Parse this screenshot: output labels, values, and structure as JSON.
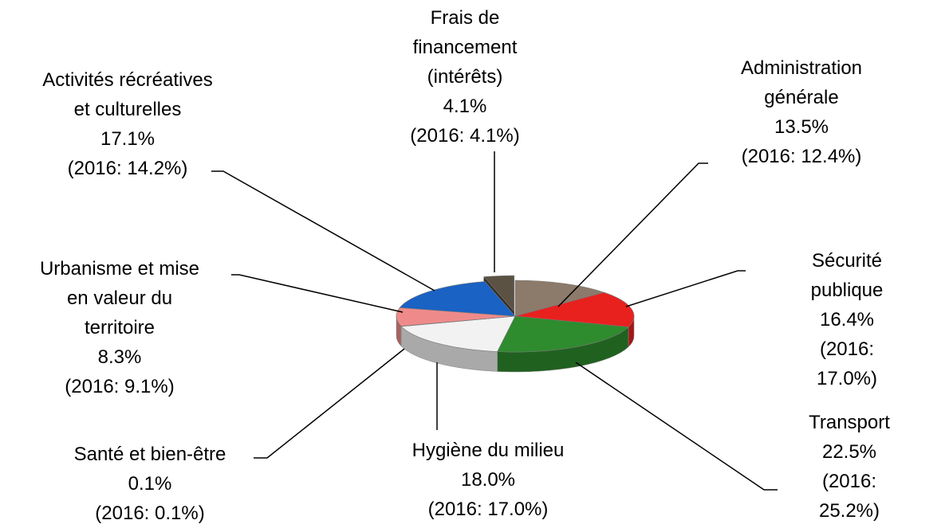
{
  "chart_data": {
    "type": "pie",
    "categories": [
      "Administration\ngénérale",
      "Sécurité publique",
      "Transport",
      "Hygiène du milieu",
      "Santé et bien-être",
      "Urbanisme et mise\nen valeur du\nterritoire",
      "Activités récréatives\net culturelles",
      "Frais de\nfinancement\n(intérêts)"
    ],
    "values": [
      13.5,
      16.4,
      22.5,
      18.0,
      0.1,
      8.3,
      17.1,
      4.1
    ],
    "value_labels": [
      "13.5%",
      "16.4%",
      "22.5%",
      "18.0%",
      "0.1%",
      "8.3%",
      "17.1%",
      "4.1%"
    ],
    "previous_labels": [
      "(2016: 12.4%)",
      "(2016: 17.0%)",
      "(2016: 25.2%)",
      "(2016: 17.0%)",
      "(2016: 0.1%)",
      "(2016: 9.1%)",
      "(2016: 14.2%)",
      "(2016: 4.1%)"
    ],
    "colors": [
      "#8c7b6b",
      "#e8211f",
      "#2e8b2e",
      "#f2f2f2",
      "#b0b0b0",
      "#ef8a8a",
      "#1a62c4",
      "#5c5244"
    ]
  }
}
